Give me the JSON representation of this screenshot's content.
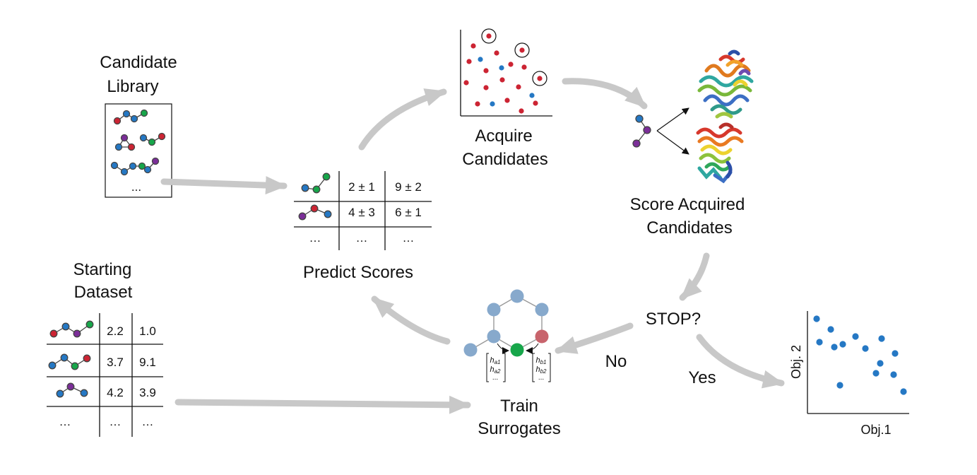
{
  "labels": {
    "candidate_library": [
      "Candidate",
      "Library"
    ],
    "acquire_candidates": [
      "Acquire",
      "Candidates"
    ],
    "score_acquired": [
      "Score Acquired",
      "Candidates"
    ],
    "predict_scores": "Predict Scores",
    "starting_dataset": [
      "Starting",
      "Dataset"
    ],
    "train_surrogates": [
      "Train",
      "Surrogates"
    ],
    "stop": "STOP?",
    "no": "No",
    "yes": "Yes"
  },
  "library_ellipsis": "...",
  "predict_table": {
    "rows": [
      [
        "2 ± 1",
        "9 ± 2"
      ],
      [
        "4 ± 3",
        "6 ± 1"
      ],
      [
        "…",
        "…"
      ]
    ],
    "first_col_ellipsis": "…"
  },
  "dataset_table": {
    "rows": [
      [
        "2.2",
        "1.0"
      ],
      [
        "3.7",
        "9.1"
      ],
      [
        "4.2",
        "3.9"
      ],
      [
        "…",
        "…"
      ]
    ],
    "first_col_ellipsis": "…"
  },
  "surrogate_vectors": {
    "left": [
      "h_a1",
      "h_a2",
      "..."
    ],
    "right": [
      "h_b1",
      "h_b2",
      "..."
    ]
  },
  "pareto_plot": {
    "xlabel": "Obj.1",
    "ylabel": "Obj. 2"
  },
  "colors": {
    "red": "#cc2433",
    "blue": "#2578c4",
    "green": "#17a64a",
    "purple": "#7b2e98",
    "arrow": "#c8c8c8",
    "node_grey_blue": "#87a9cc",
    "node_red": "#c8646c"
  },
  "icons": [
    "protein-structure-icon",
    "molecule-graph-icon"
  ]
}
